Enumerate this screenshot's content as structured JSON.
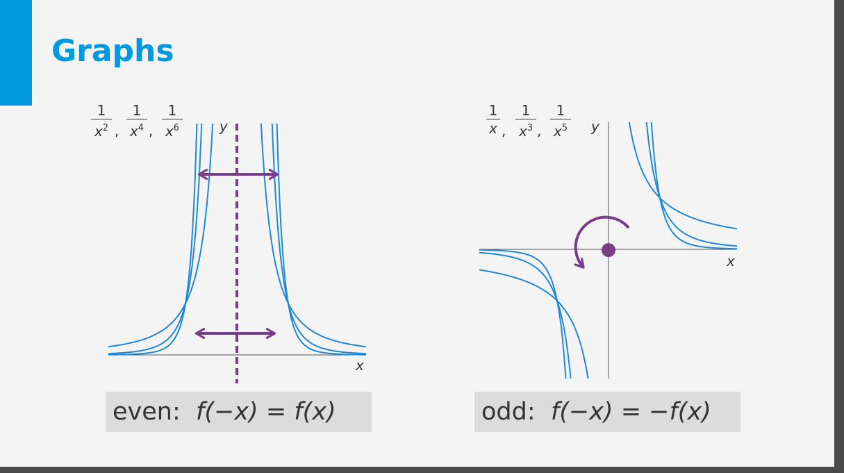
{
  "slide": {
    "title": "Graphs"
  },
  "left_panel": {
    "functions": [
      {
        "num": "1",
        "den_base": "x",
        "den_exp": "2"
      },
      {
        "num": "1",
        "den_base": "x",
        "den_exp": "4"
      },
      {
        "num": "1",
        "den_base": "x",
        "den_exp": "6"
      }
    ],
    "comma": ",",
    "x_label": "x",
    "y_label": "y",
    "caption_word": "even:",
    "caption_formula": "f(−x) = f(x)",
    "curve_color": "#1e88d6",
    "symmetry_color": "#7a3d8a"
  },
  "right_panel": {
    "functions": [
      {
        "num": "1",
        "den_base": "x",
        "den_exp": ""
      },
      {
        "num": "1",
        "den_base": "x",
        "den_exp": "3"
      },
      {
        "num": "1",
        "den_base": "x",
        "den_exp": "5"
      }
    ],
    "comma": ",",
    "x_label": "x",
    "y_label": "y",
    "caption_word": "odd:",
    "caption_formula": "f(−x) = −f(x)",
    "curve_color": "#1e88d6",
    "symmetry_color": "#7a3d8a"
  }
}
